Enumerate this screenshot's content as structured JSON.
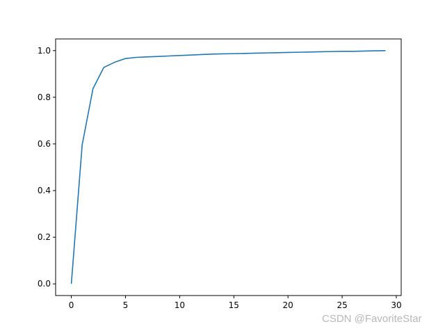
{
  "chart_data": {
    "type": "line",
    "title": "",
    "xlabel": "",
    "ylabel": "",
    "xlim": [
      -1.45,
      30.45
    ],
    "ylim": [
      -0.05,
      1.05
    ],
    "xticks": [
      0,
      5,
      10,
      15,
      20,
      25,
      30
    ],
    "xtick_labels": [
      "0",
      "5",
      "10",
      "15",
      "20",
      "25",
      "30"
    ],
    "yticks": [
      0.0,
      0.2,
      0.4,
      0.6,
      0.8,
      1.0
    ],
    "ytick_labels": [
      "0.0",
      "0.2",
      "0.4",
      "0.6",
      "0.8",
      "1.0"
    ],
    "grid": false,
    "series": [
      {
        "color": "#1f77b4",
        "x": [
          0,
          1,
          2,
          3,
          4,
          5,
          6,
          7,
          8,
          9,
          10,
          11,
          12,
          13,
          14,
          15,
          16,
          17,
          18,
          19,
          20,
          21,
          22,
          23,
          24,
          25,
          26,
          27,
          28,
          29
        ],
        "y": [
          0.0,
          0.596,
          0.837,
          0.928,
          0.95,
          0.966,
          0.971,
          0.973,
          0.975,
          0.977,
          0.979,
          0.981,
          0.983,
          0.985,
          0.986,
          0.987,
          0.988,
          0.989,
          0.99,
          0.991,
          0.992,
          0.993,
          0.994,
          0.995,
          0.996,
          0.997,
          0.997,
          0.998,
          0.999,
          1.0
        ]
      }
    ]
  },
  "watermark": "CSDN @FavoriteStar"
}
